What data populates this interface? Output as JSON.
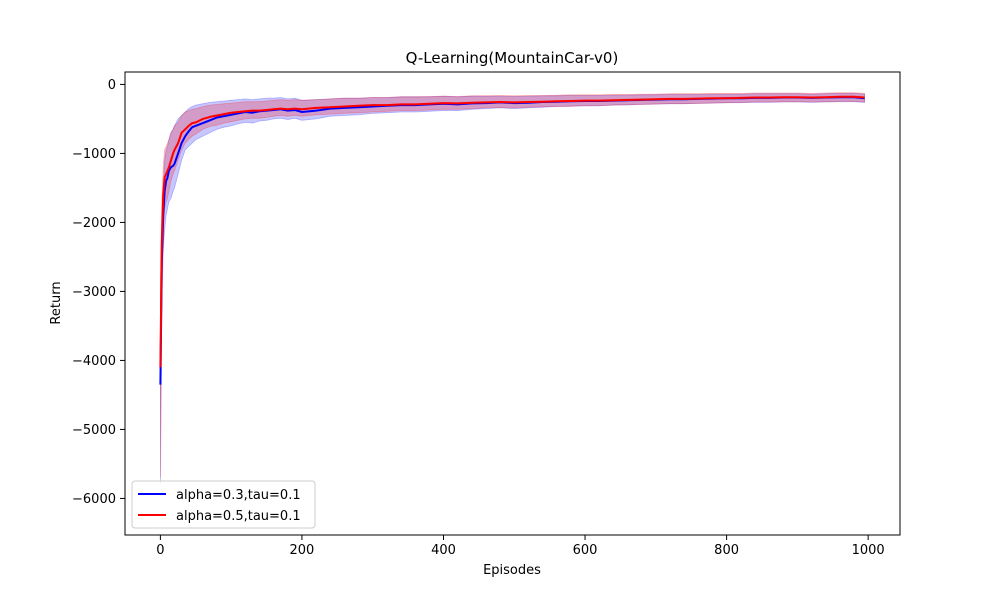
{
  "chart_data": {
    "type": "line",
    "title": "Q-Learning(MountainCar-v0)",
    "xlabel": "Episodes",
    "ylabel": "Return",
    "xlim": [
      -50,
      1045
    ],
    "ylim": [
      -6530,
      180
    ],
    "xticks": [
      0,
      200,
      400,
      600,
      800,
      1000
    ],
    "yticks": [
      0,
      -1000,
      -2000,
      -3000,
      -4000,
      -5000,
      -6000
    ],
    "xtick_labels": [
      "0",
      "200",
      "400",
      "600",
      "800",
      "1000"
    ],
    "ytick_labels": [
      "0",
      "−1000",
      "−2000",
      "−3000",
      "−4000",
      "−5000",
      "−6000"
    ],
    "legend_position": "bottom-left",
    "grid": false,
    "series": [
      {
        "name": "alpha=0.3,tau=0.1",
        "color": "#0000ff",
        "band_color": "#0000ff",
        "x": [
          0,
          2,
          4,
          6,
          8,
          10,
          12,
          15,
          18,
          20,
          25,
          30,
          35,
          40,
          45,
          50,
          60,
          70,
          80,
          90,
          100,
          110,
          120,
          130,
          140,
          150,
          160,
          170,
          180,
          190,
          200,
          220,
          240,
          260,
          280,
          300,
          320,
          340,
          360,
          380,
          400,
          420,
          440,
          460,
          480,
          500,
          520,
          540,
          560,
          580,
          600,
          620,
          640,
          660,
          680,
          700,
          720,
          740,
          760,
          780,
          800,
          820,
          840,
          860,
          880,
          900,
          920,
          940,
          960,
          980,
          995
        ],
        "y": [
          -4350,
          -2600,
          -1900,
          -1550,
          -1400,
          -1350,
          -1250,
          -1200,
          -1180,
          -1150,
          -1000,
          -850,
          -750,
          -680,
          -620,
          -600,
          -560,
          -520,
          -480,
          -460,
          -440,
          -420,
          -400,
          -410,
          -390,
          -380,
          -370,
          -360,
          -380,
          -370,
          -400,
          -380,
          -350,
          -340,
          -330,
          -320,
          -310,
          -300,
          -300,
          -290,
          -280,
          -290,
          -275,
          -270,
          -260,
          -270,
          -265,
          -255,
          -250,
          -245,
          -240,
          -240,
          -235,
          -230,
          -225,
          -220,
          -215,
          -215,
          -210,
          -205,
          -200,
          -200,
          -195,
          -195,
          -190,
          -190,
          -195,
          -190,
          -185,
          -185,
          -200
        ],
        "lower": [
          -5800,
          -3200,
          -2400,
          -2100,
          -1900,
          -1800,
          -1700,
          -1650,
          -1550,
          -1500,
          -1300,
          -1100,
          -950,
          -900,
          -850,
          -800,
          -750,
          -700,
          -650,
          -620,
          -600,
          -570,
          -550,
          -560,
          -530,
          -520,
          -500,
          -490,
          -510,
          -490,
          -520,
          -500,
          -460,
          -450,
          -440,
          -420,
          -410,
          -400,
          -400,
          -390,
          -380,
          -380,
          -360,
          -350,
          -340,
          -350,
          -340,
          -330,
          -320,
          -315,
          -310,
          -310,
          -300,
          -295,
          -290,
          -285,
          -280,
          -280,
          -275,
          -270,
          -265,
          -265,
          -260,
          -260,
          -255,
          -255,
          -260,
          -255,
          -250,
          -250,
          -260
        ],
        "upper": [
          -3000,
          -2000,
          -1500,
          -1100,
          -950,
          -900,
          -800,
          -700,
          -650,
          -600,
          -500,
          -450,
          -400,
          -350,
          -320,
          -300,
          -280,
          -260,
          -250,
          -240,
          -230,
          -220,
          -210,
          -220,
          -210,
          -200,
          -200,
          -190,
          -210,
          -200,
          -230,
          -220,
          -210,
          -200,
          -200,
          -190,
          -190,
          -180,
          -180,
          -180,
          -170,
          -180,
          -170,
          -170,
          -170,
          -175,
          -170,
          -165,
          -165,
          -160,
          -160,
          -160,
          -155,
          -155,
          -150,
          -150,
          -145,
          -145,
          -145,
          -140,
          -140,
          -140,
          -135,
          -135,
          -135,
          -135,
          -140,
          -135,
          -130,
          -130,
          -140
        ]
      },
      {
        "name": "alpha=0.5,tau=0.1",
        "color": "#ff0000",
        "band_color": "#ff0000",
        "x": [
          0,
          2,
          4,
          6,
          8,
          10,
          12,
          15,
          18,
          20,
          25,
          30,
          35,
          40,
          45,
          50,
          60,
          70,
          80,
          90,
          100,
          110,
          120,
          130,
          140,
          150,
          160,
          170,
          180,
          190,
          200,
          220,
          240,
          260,
          280,
          300,
          320,
          340,
          360,
          380,
          400,
          420,
          440,
          460,
          480,
          500,
          520,
          540,
          560,
          580,
          600,
          620,
          640,
          660,
          680,
          700,
          720,
          740,
          760,
          780,
          800,
          820,
          840,
          860,
          880,
          900,
          920,
          940,
          960,
          980,
          995
        ],
        "y": [
          -4100,
          -2300,
          -1600,
          -1350,
          -1300,
          -1250,
          -1200,
          -1100,
          -1000,
          -950,
          -850,
          -700,
          -650,
          -600,
          -560,
          -550,
          -500,
          -470,
          -450,
          -430,
          -410,
          -400,
          -390,
          -380,
          -380,
          -370,
          -360,
          -350,
          -360,
          -350,
          -360,
          -340,
          -330,
          -320,
          -310,
          -300,
          -300,
          -290,
          -290,
          -280,
          -270,
          -275,
          -265,
          -260,
          -255,
          -260,
          -255,
          -250,
          -245,
          -240,
          -235,
          -235,
          -230,
          -225,
          -220,
          -215,
          -210,
          -210,
          -205,
          -200,
          -200,
          -195,
          -190,
          -190,
          -185,
          -185,
          -190,
          -185,
          -180,
          -180,
          -190
        ],
        "lower": [
          -5700,
          -3000,
          -2100,
          -1800,
          -1700,
          -1650,
          -1550,
          -1400,
          -1300,
          -1250,
          -1100,
          -950,
          -850,
          -800,
          -750,
          -720,
          -650,
          -610,
          -590,
          -560,
          -540,
          -520,
          -500,
          -490,
          -490,
          -480,
          -460,
          -450,
          -460,
          -450,
          -460,
          -440,
          -430,
          -420,
          -410,
          -400,
          -390,
          -380,
          -380,
          -370,
          -360,
          -360,
          -350,
          -340,
          -335,
          -340,
          -330,
          -325,
          -320,
          -315,
          -310,
          -305,
          -300,
          -295,
          -290,
          -285,
          -280,
          -280,
          -275,
          -270,
          -265,
          -260,
          -255,
          -255,
          -250,
          -250,
          -255,
          -250,
          -245,
          -245,
          -255
        ],
        "upper": [
          -2800,
          -1700,
          -1200,
          -950,
          -900,
          -850,
          -800,
          -700,
          -650,
          -600,
          -550,
          -450,
          -400,
          -380,
          -360,
          -350,
          -320,
          -300,
          -290,
          -280,
          -270,
          -260,
          -250,
          -250,
          -250,
          -240,
          -230,
          -220,
          -230,
          -220,
          -230,
          -220,
          -210,
          -200,
          -200,
          -190,
          -190,
          -180,
          -180,
          -175,
          -170,
          -175,
          -165,
          -165,
          -160,
          -165,
          -160,
          -160,
          -155,
          -150,
          -150,
          -150,
          -145,
          -145,
          -140,
          -140,
          -135,
          -135,
          -135,
          -130,
          -130,
          -130,
          -125,
          -125,
          -125,
          -125,
          -130,
          -125,
          -120,
          -120,
          -130
        ]
      }
    ]
  }
}
